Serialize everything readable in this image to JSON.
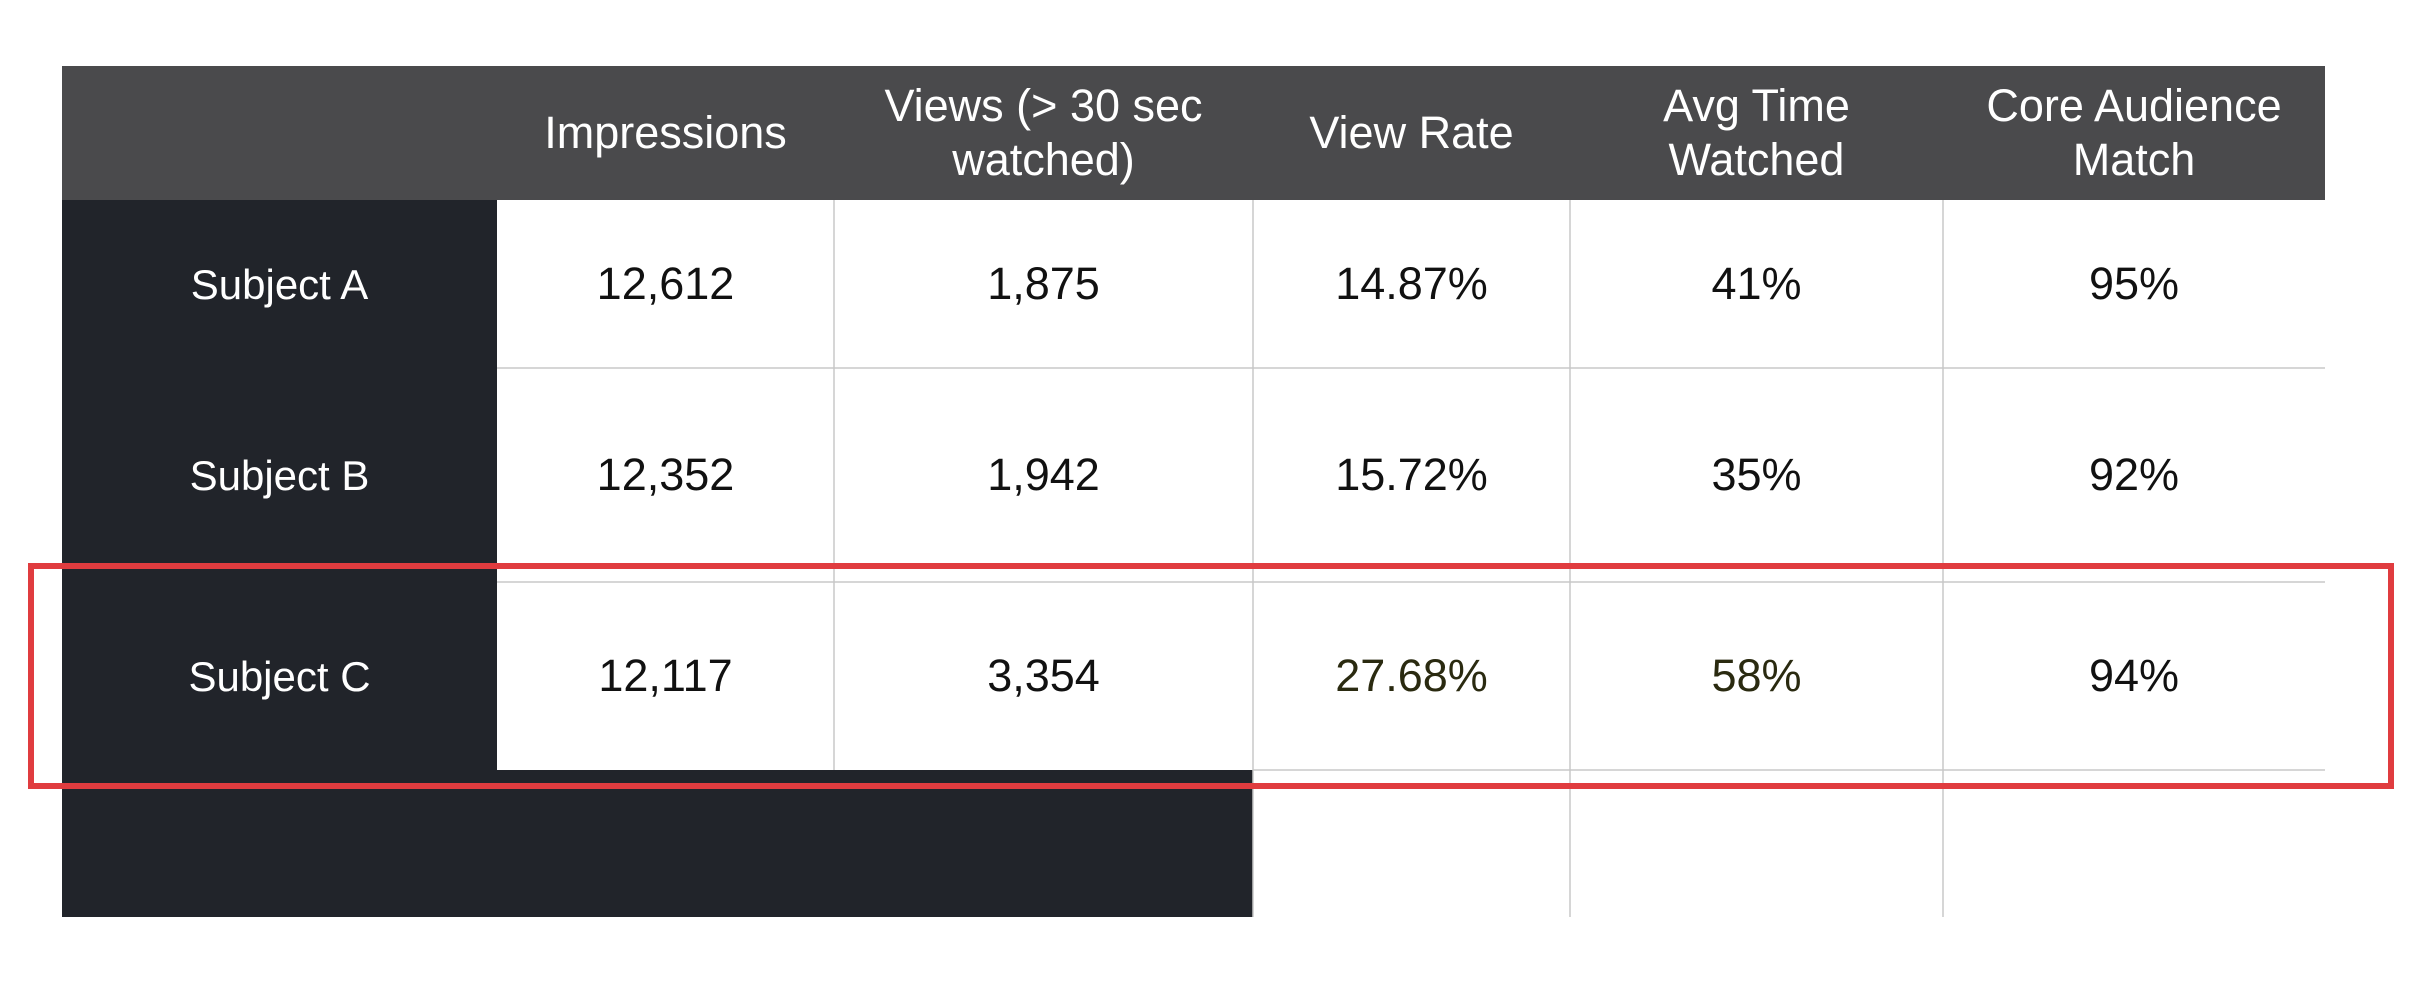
{
  "chart_data": {
    "type": "table",
    "columns": [
      "",
      "Impressions",
      "Views (> 30 sec watched)",
      "View Rate",
      "Avg Time Watched",
      "Core Audience Match"
    ],
    "header_lines": [
      [],
      [
        "Impressions"
      ],
      [
        "Views (> 30 sec",
        "watched)"
      ],
      [
        "View Rate"
      ],
      [
        "Avg Time",
        "Watched"
      ],
      [
        "Core Audience",
        "Match"
      ]
    ],
    "rows": [
      {
        "label": "Subject A",
        "cells": [
          "12,612",
          "1,875",
          "14.87%",
          "41%",
          "95%"
        ]
      },
      {
        "label": "Subject B",
        "cells": [
          "12,352",
          "1,942",
          "15.72%",
          "35%",
          "92%"
        ]
      },
      {
        "label": "Subject C",
        "cells": [
          "12,117",
          "3,354",
          "27.68%",
          "58%",
          "94%"
        ]
      }
    ],
    "highlighted_row": "Subject C",
    "highlighted_cells": [
      {
        "row": "Subject C",
        "column": "View Rate"
      },
      {
        "row": "Subject C",
        "column": "Avg Time Watched"
      }
    ],
    "colors": {
      "header_bg": "#4a4a4c",
      "row_label_bg": "#21242a",
      "highlight_fill": "#eef0cf",
      "highlight_outline": "#e03c3f",
      "grid_line": "#c8c8c8",
      "header_text": "#ffffff",
      "cell_text": "#111111",
      "highlight_text": "#2a2a10"
    }
  }
}
